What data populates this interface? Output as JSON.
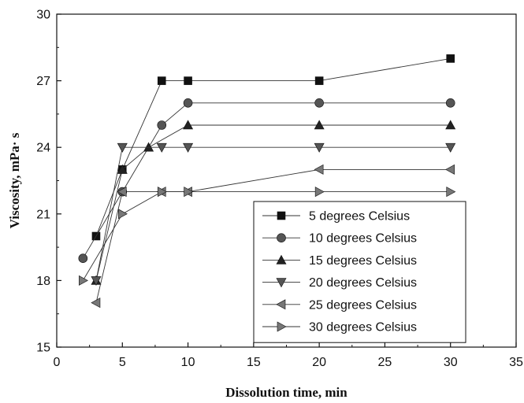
{
  "chart_data": {
    "type": "line",
    "title": "",
    "xlabel": "Dissolution time, min",
    "ylabel": "Viscosity, mPa· s",
    "xlim": [
      0,
      35
    ],
    "ylim": [
      15,
      30
    ],
    "xticks": [
      0,
      5,
      10,
      15,
      20,
      25,
      30,
      35
    ],
    "yticks": [
      15,
      18,
      21,
      24,
      27,
      30
    ],
    "grid": false,
    "legend_position": "bottom-right",
    "series": [
      {
        "name": "5 degrees Celsius",
        "marker": "square",
        "color": "#111111",
        "points": [
          [
            3,
            20
          ],
          [
            5,
            23
          ],
          [
            8,
            27
          ],
          [
            10,
            27
          ],
          [
            20,
            27
          ],
          [
            30,
            28
          ]
        ]
      },
      {
        "name": "10 degrees Celsius",
        "marker": "circle",
        "color": "#555555",
        "points": [
          [
            2,
            19
          ],
          [
            5,
            22
          ],
          [
            8,
            25
          ],
          [
            10,
            26
          ],
          [
            20,
            26
          ],
          [
            30,
            26
          ]
        ]
      },
      {
        "name": "15 degrees Celsius",
        "marker": "triangle-up",
        "color": "#222222",
        "points": [
          [
            3,
            18
          ],
          [
            5,
            23
          ],
          [
            7,
            24
          ],
          [
            10,
            25
          ],
          [
            20,
            25
          ],
          [
            30,
            25
          ]
        ]
      },
      {
        "name": "20 degrees Celsius",
        "marker": "triangle-down",
        "color": "#555555",
        "points": [
          [
            3,
            18
          ],
          [
            5,
            24
          ],
          [
            8,
            24
          ],
          [
            10,
            24
          ],
          [
            20,
            24
          ],
          [
            30,
            24
          ]
        ]
      },
      {
        "name": "25 degrees Celsius",
        "marker": "triangle-left",
        "color": "#777777",
        "points": [
          [
            3,
            17
          ],
          [
            5,
            22
          ],
          [
            8,
            22
          ],
          [
            10,
            22
          ],
          [
            20,
            23
          ],
          [
            30,
            23
          ]
        ]
      },
      {
        "name": "30 degrees Celsius",
        "marker": "triangle-right",
        "color": "#777777",
        "points": [
          [
            2,
            18
          ],
          [
            5,
            21
          ],
          [
            8,
            22
          ],
          [
            10,
            22
          ],
          [
            20,
            22
          ],
          [
            30,
            22
          ]
        ]
      }
    ]
  }
}
